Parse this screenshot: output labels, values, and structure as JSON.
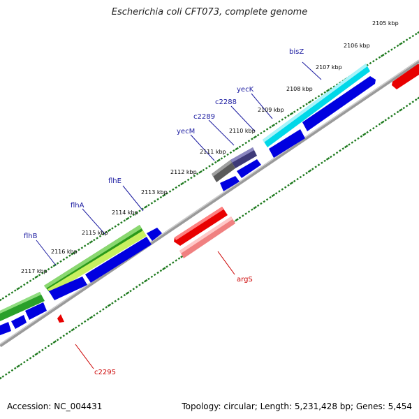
{
  "title": "Escherichia coli CFT073, complete genome",
  "footer": {
    "accession": "Accession: NC_004431",
    "summary": "Topology: circular; Length: 5,231,428 bp; Genes: 5,454"
  },
  "colors": {
    "forward_label": "#1a1aa0",
    "reverse_label": "#cc0000",
    "backbone": "#808080",
    "tick": "#1e7a1e",
    "cds": "#0000e0"
  },
  "ruler_labels": [
    "2105 kbp",
    "2106 kbp",
    "2107 kbp",
    "2108 kbp",
    "2109 kbp",
    "2110 kbp",
    "2111 kbp",
    "2112 kbp",
    "2113 kbp",
    "2114 kbp",
    "2115 kbp",
    "2116 kbp",
    "2117 kbp"
  ],
  "forward_genes": [
    "bisZ",
    "yecK",
    "c2288",
    "c2289",
    "yecM",
    "flhE",
    "flhA",
    "flhB"
  ],
  "reverse_genes": [
    "argS",
    "c2295"
  ]
}
